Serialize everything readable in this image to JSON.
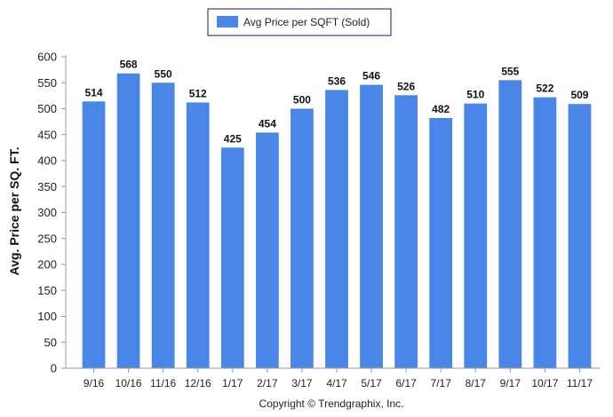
{
  "chart_data": {
    "type": "bar",
    "categories": [
      "9/16",
      "10/16",
      "11/16",
      "12/16",
      "1/17",
      "2/17",
      "3/17",
      "4/17",
      "5/17",
      "6/17",
      "7/17",
      "8/17",
      "9/17",
      "10/17",
      "11/17"
    ],
    "series": [
      {
        "name": "Avg Price per SQFT (Sold)",
        "values": [
          514,
          568,
          550,
          512,
          425,
          454,
          500,
          536,
          546,
          526,
          482,
          510,
          555,
          522,
          509
        ]
      }
    ],
    "data_labels": [
      "514",
      "568",
      "550",
      "512",
      "425",
      "454",
      "500",
      "536",
      "546",
      "526",
      "482",
      "510",
      "555",
      "522",
      "509"
    ],
    "ylabel": "Avg. Price per SQ. FT.",
    "xlabel": "",
    "ylim": [
      0,
      600
    ],
    "yticks": [
      "0",
      "50",
      "100",
      "150",
      "200",
      "250",
      "300",
      "350",
      "400",
      "450",
      "500",
      "550",
      "600"
    ],
    "legend_position": "top-center",
    "grid": false,
    "colors": {
      "bar": "#4a86e8",
      "axis": "#999999",
      "legend_border": "#33448a"
    }
  },
  "footer": {
    "copyright": "Copyright © Trendgraphix, Inc."
  }
}
